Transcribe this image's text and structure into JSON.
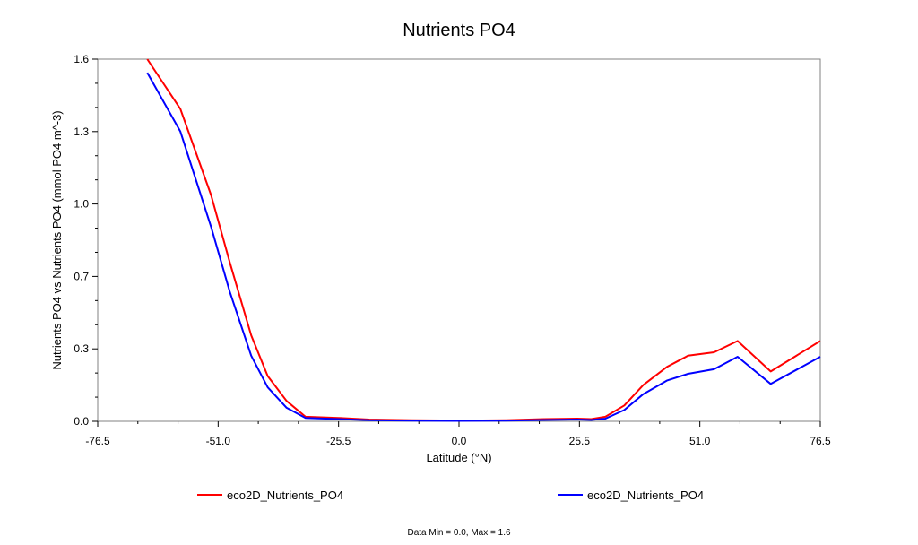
{
  "chart_data": {
    "type": "line",
    "title": "Nutrients PO4",
    "xlabel": "Latitude (°N)",
    "ylabel": "Nutrients PO4 vs Nutrients PO4 (mmol PO4 m^-3)",
    "xlim": [
      -76.5,
      76.5
    ],
    "ylim": [
      0.0,
      1.6
    ],
    "x_ticks": [
      "-76.5",
      "-51.0",
      "-25.5",
      "0.0",
      "25.5",
      "51.0",
      "76.5"
    ],
    "y_ticks": [
      "0.0",
      "0.3",
      "0.7",
      "1.0",
      "1.3",
      "1.6"
    ],
    "grid": false,
    "legend_position": "bottom",
    "footnote": "Data Min = 0.0, Max = 1.6",
    "series": [
      {
        "name": "eco2D_Nutrients_PO4",
        "color": "#ff0000",
        "x": [
          -66,
          -59,
          -52.5,
          -48.5,
          -44,
          -40.5,
          -36.5,
          -32.5,
          -25.5,
          -19,
          -10,
          0,
          10,
          18,
          25,
          28,
          31,
          35,
          39,
          44,
          48.5,
          54,
          59,
          66,
          76.5
        ],
        "y": [
          1.6,
          1.38,
          1.0,
          0.7,
          0.38,
          0.2,
          0.09,
          0.02,
          0.015,
          0.008,
          0.005,
          0.003,
          0.005,
          0.01,
          0.012,
          0.01,
          0.02,
          0.07,
          0.16,
          0.24,
          0.29,
          0.305,
          0.355,
          0.22,
          0.355
        ]
      },
      {
        "name": "eco2D_Nutrients_PO4",
        "color": "#0000ff",
        "x": [
          -66,
          -59,
          -52.5,
          -48.5,
          -44,
          -40.5,
          -36.5,
          -32.5,
          -25.5,
          -19,
          -10,
          0,
          10,
          18,
          25,
          28,
          31,
          35,
          39,
          44,
          48.5,
          54,
          59,
          66,
          76.5
        ],
        "y": [
          1.54,
          1.28,
          0.86,
          0.57,
          0.29,
          0.15,
          0.06,
          0.015,
          0.01,
          0.005,
          0.003,
          0.002,
          0.003,
          0.006,
          0.008,
          0.006,
          0.012,
          0.05,
          0.12,
          0.18,
          0.21,
          0.23,
          0.285,
          0.165,
          0.285
        ]
      }
    ]
  }
}
